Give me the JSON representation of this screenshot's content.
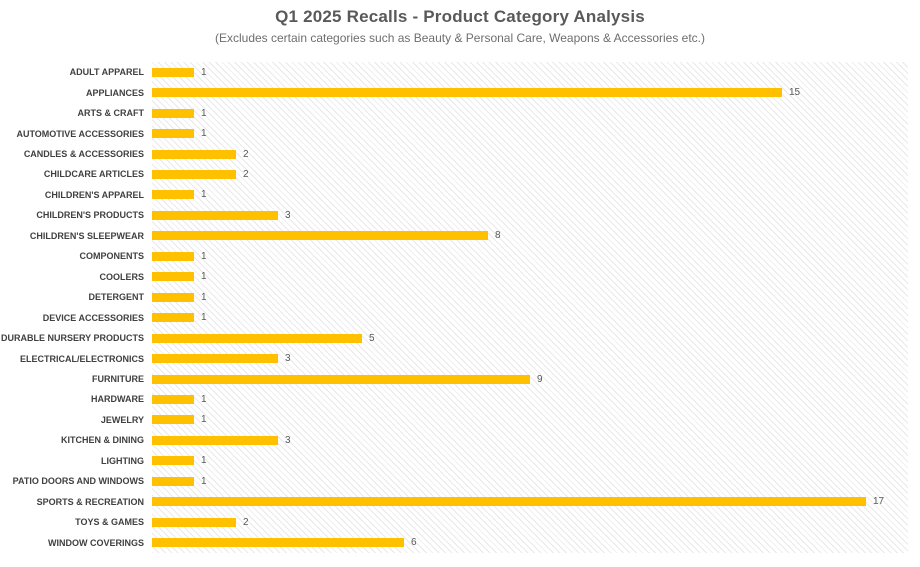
{
  "colors": {
    "bar": "#FFC000",
    "title_text": "#595959",
    "subtitle_text": "#6e6e6e",
    "category_label_text": "#404040",
    "value_label_text": "#595959",
    "hatch_line": "#e9e9e9",
    "plot_background": "#ffffff"
  },
  "chart_data": {
    "type": "bar",
    "orientation": "horizontal",
    "title": "Q1 2025 Recalls - Product Category Analysis",
    "subtitle": "(Excludes certain categories such as Beauty & Personal Care, Weapons & Accessories etc.)",
    "categories": [
      "ADULT APPAREL",
      "APPLIANCES",
      "ARTS & CRAFT",
      "AUTOMOTIVE ACCESSORIES",
      "CANDLES & ACCESSORIES",
      "CHILDCARE ARTICLES",
      "CHILDREN'S APPAREL",
      "CHILDREN'S PRODUCTS",
      "CHILDREN'S SLEEPWEAR",
      "COMPONENTS",
      "COOLERS",
      "DETERGENT",
      "DEVICE ACCESSORIES",
      "DURABLE NURSERY PRODUCTS",
      "ELECTRICAL/ELECTRONICS",
      "FURNITURE",
      "HARDWARE",
      "JEWELRY",
      "KITCHEN & DINING",
      "LIGHTING",
      "PATIO DOORS AND WINDOWS",
      "SPORTS & RECREATION",
      "TOYS & GAMES",
      "WINDOW COVERINGS"
    ],
    "values": [
      1,
      15,
      1,
      1,
      2,
      2,
      1,
      3,
      8,
      1,
      1,
      1,
      1,
      5,
      3,
      9,
      1,
      1,
      3,
      1,
      1,
      17,
      2,
      6
    ],
    "data_labels": true,
    "xlim": [
      0,
      18
    ],
    "grid": false,
    "legend": "none",
    "plot_area_fill": "light diagonal hatch"
  }
}
